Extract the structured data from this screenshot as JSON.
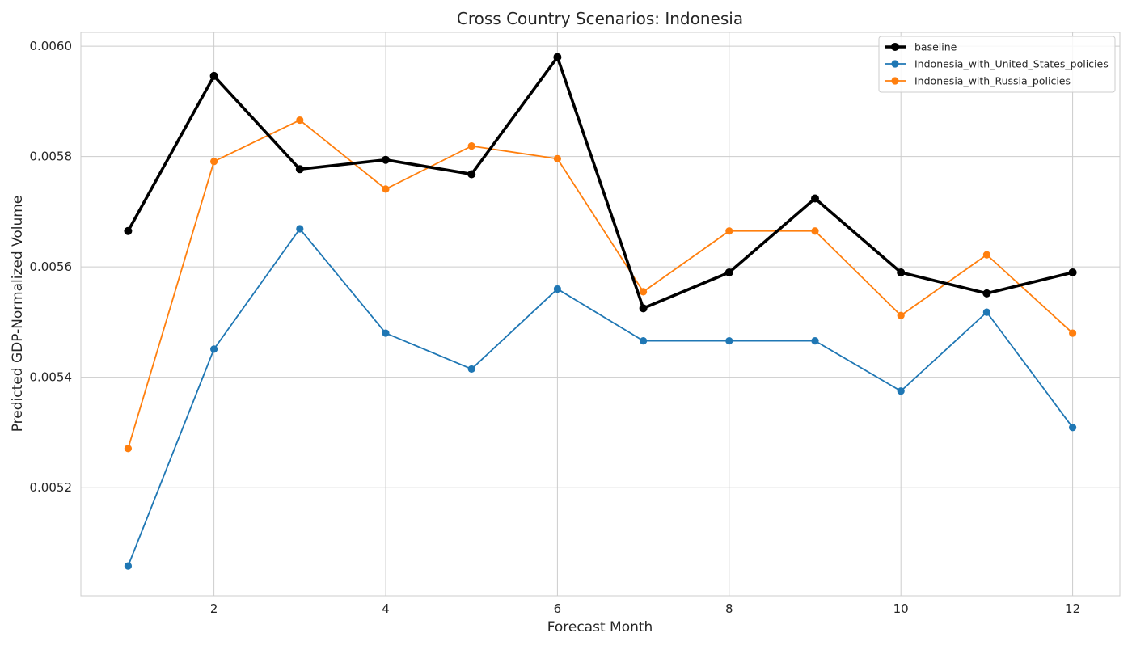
{
  "chart_data": {
    "type": "line",
    "title": "Cross Country Scenarios: Indonesia",
    "xlabel": "Forecast Month",
    "ylabel": "Predicted GDP-Normalized Volume",
    "x": [
      1,
      2,
      3,
      4,
      5,
      6,
      7,
      8,
      9,
      10,
      11,
      12
    ],
    "xlim": [
      0.45,
      12.55
    ],
    "ylim": [
      0.005004,
      0.006025
    ],
    "x_ticks": [
      2,
      4,
      6,
      8,
      10,
      12
    ],
    "x_tick_labels": [
      "2",
      "4",
      "6",
      "8",
      "10",
      "12"
    ],
    "y_ticks": [
      0.0052,
      0.0054,
      0.0056,
      0.0058,
      0.006
    ],
    "y_tick_labels": [
      "0.0052",
      "0.0054",
      "0.0056",
      "0.0058",
      "0.0060"
    ],
    "grid": true,
    "legend_position": "top-right",
    "series": [
      {
        "name": "baseline",
        "color": "#000000",
        "emphasis": "thick",
        "values": [
          0.005665,
          0.005946,
          0.005777,
          0.005794,
          0.005768,
          0.00598,
          0.005525,
          0.00559,
          0.005724,
          0.00559,
          0.005552,
          0.00559
        ]
      },
      {
        "name": "Indonesia_with_United_States_policies",
        "color": "#1f77b4",
        "emphasis": "normal",
        "values": [
          0.005058,
          0.005451,
          0.005669,
          0.00548,
          0.005415,
          0.00556,
          0.005466,
          0.005466,
          0.005466,
          0.005375,
          0.005518,
          0.005309
        ]
      },
      {
        "name": "Indonesia_with_Russia_policies",
        "color": "#ff7f0e",
        "emphasis": "normal",
        "values": [
          0.005271,
          0.005791,
          0.005866,
          0.005741,
          0.005819,
          0.005796,
          0.005555,
          0.005665,
          0.005665,
          0.005512,
          0.005622,
          0.00548
        ]
      }
    ]
  }
}
